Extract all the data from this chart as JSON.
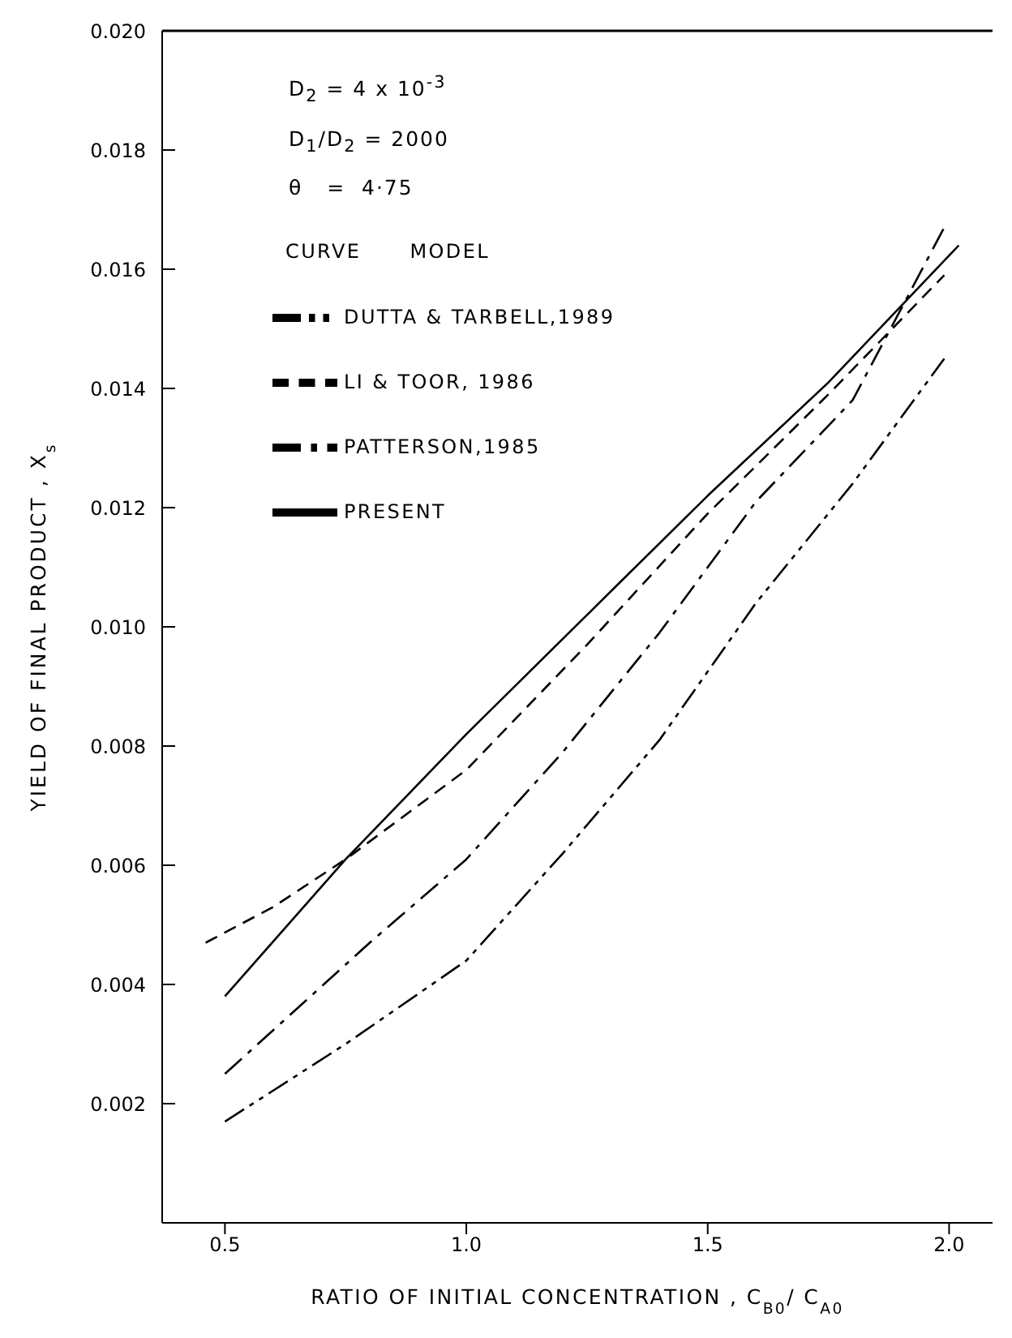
{
  "chart_data": {
    "type": "line",
    "xlabel": "RATIO OF INITIAL CONCENTRATION , C$_{B0}$/ C$_{A0}$",
    "ylabel": "YIELD OF FINAL PRODUCT , X$_{s}$",
    "legend_title": "CURVE      MODEL",
    "legend": "top left",
    "annotations": [
      "D$_{2}$ = 4 x 10$^{-3}$",
      "D$_{1}$/D$_{2}$ = 2000",
      "θ   =  4·75"
    ],
    "xlim": [
      0.37,
      2.09
    ],
    "xticks": [
      {
        "value": 0.5,
        "label": "0.5"
      },
      {
        "value": 1.0,
        "label": "1.0"
      },
      {
        "value": 1.5,
        "label": "1.5"
      },
      {
        "value": 2.0,
        "label": "2.0"
      }
    ],
    "ylim": [
      0,
      0.02
    ],
    "yticks": [
      0.002,
      0.004,
      0.006,
      0.008,
      {
        "value": 0.01,
        "label": "0.010"
      },
      0.012,
      0.014,
      0.016,
      0.018,
      {
        "value": 0.02,
        "label": "0.020"
      }
    ],
    "series": [
      {
        "name": "PRESENT",
        "color": "#000000",
        "line_style": "solid",
        "x": [
          0.5,
          0.75,
          1.0,
          1.25,
          1.5,
          1.75,
          2.02
        ],
        "values": [
          0.0038,
          0.0061,
          0.0082,
          0.0102,
          0.0122,
          0.0141,
          0.0164
        ]
      },
      {
        "name": "LI & TOOR, 1986",
        "color": "#000000",
        "line_style": "dashed",
        "x": [
          0.46,
          0.6,
          0.75,
          1.0,
          1.25,
          1.5,
          1.75,
          1.99
        ],
        "values": [
          0.0047,
          0.0053,
          0.0061,
          0.0076,
          0.0097,
          0.0119,
          0.0139,
          0.0159
        ]
      },
      {
        "name": "PATTERSON,1985",
        "color": "#000000",
        "line_style": "dashdot",
        "x": [
          0.5,
          0.8,
          1.0,
          1.2,
          1.4,
          1.6,
          1.8,
          1.99
        ],
        "values": [
          0.0025,
          0.0047,
          0.0061,
          0.0079,
          0.0099,
          0.0121,
          0.0138,
          0.0167
        ]
      },
      {
        "name": "DUTTA & TARBELL,1989",
        "color": "#000000",
        "line_style": "dashdotdot",
        "x": [
          0.5,
          0.75,
          1.0,
          1.2,
          1.4,
          1.6,
          1.8,
          1.99
        ],
        "values": [
          0.0017,
          0.003,
          0.0044,
          0.0062,
          0.0081,
          0.0104,
          0.0124,
          0.0145
        ]
      }
    ]
  }
}
